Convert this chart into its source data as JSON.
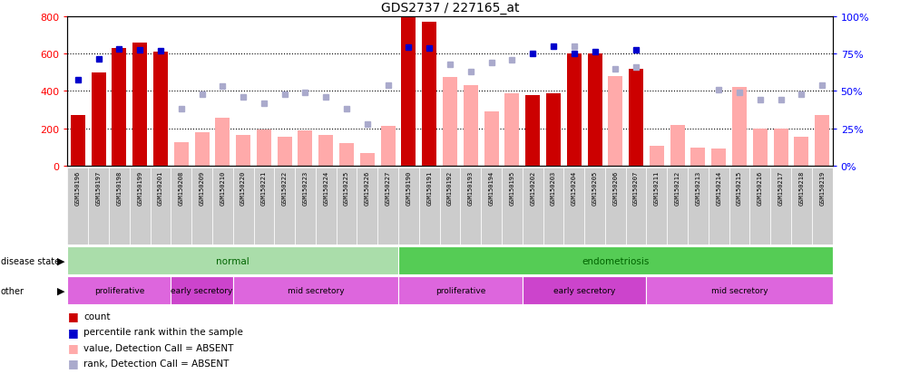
{
  "title": "GDS2737 / 227165_at",
  "samples": [
    "GSM150196",
    "GSM150197",
    "GSM150198",
    "GSM150199",
    "GSM150201",
    "GSM150208",
    "GSM150209",
    "GSM150210",
    "GSM150220",
    "GSM150221",
    "GSM150222",
    "GSM150223",
    "GSM150224",
    "GSM150225",
    "GSM150226",
    "GSM150227",
    "GSM150190",
    "GSM150191",
    "GSM150192",
    "GSM150193",
    "GSM150194",
    "GSM150195",
    "GSM150202",
    "GSM150203",
    "GSM150204",
    "GSM150205",
    "GSM150206",
    "GSM150207",
    "GSM150211",
    "GSM150212",
    "GSM150213",
    "GSM150214",
    "GSM150215",
    "GSM150216",
    "GSM150217",
    "GSM150218",
    "GSM150219"
  ],
  "count_values": [
    270,
    500,
    630,
    660,
    610,
    null,
    null,
    null,
    null,
    null,
    null,
    null,
    null,
    null,
    null,
    null,
    800,
    770,
    null,
    null,
    null,
    null,
    380,
    390,
    600,
    600,
    null,
    520,
    null,
    null,
    null,
    null,
    null,
    null,
    null,
    null,
    null
  ],
  "absent_values": [
    null,
    null,
    null,
    null,
    null,
    125,
    180,
    255,
    165,
    195,
    155,
    190,
    165,
    120,
    68,
    215,
    null,
    null,
    475,
    430,
    290,
    390,
    null,
    null,
    null,
    null,
    480,
    null,
    105,
    220,
    100,
    95,
    420,
    200,
    200,
    155,
    270
  ],
  "rank_present_pct": [
    57.5,
    71.5,
    78.0,
    77.5,
    77.0,
    null,
    null,
    null,
    null,
    null,
    null,
    null,
    null,
    null,
    null,
    null,
    79.0,
    78.5,
    null,
    null,
    null,
    null,
    75.0,
    80.0,
    75.0,
    76.0,
    null,
    77.5,
    null,
    null,
    null,
    null,
    null,
    null,
    null,
    null,
    null
  ],
  "rank_absent_pct": [
    null,
    null,
    null,
    null,
    null,
    38.0,
    48.0,
    53.0,
    46.0,
    42.0,
    48.0,
    49.0,
    46.0,
    38.0,
    28.0,
    54.0,
    null,
    null,
    67.5,
    63.0,
    69.0,
    71.0,
    null,
    null,
    80.0,
    null,
    65.0,
    66.0,
    null,
    null,
    null,
    51.0,
    49.0,
    44.0,
    44.0,
    48.0,
    54.0
  ],
  "present_bar_color": "#cc0000",
  "absent_bar_color": "#ffaaaa",
  "present_dot_color": "#0000cc",
  "absent_dot_color": "#aaaacc",
  "yticks_left": [
    0,
    200,
    400,
    600,
    800
  ],
  "yticks_right": [
    0,
    25,
    50,
    75,
    100
  ],
  "groups_disease": [
    {
      "label": "normal",
      "start": 0,
      "end": 16,
      "color": "#aaddaa"
    },
    {
      "label": "endometriosis",
      "start": 16,
      "end": 37,
      "color": "#55cc55"
    }
  ],
  "groups_other": [
    {
      "label": "proliferative",
      "start": 0,
      "end": 5,
      "color": "#dd66dd"
    },
    {
      "label": "early secretory",
      "start": 5,
      "end": 8,
      "color": "#cc44cc"
    },
    {
      "label": "mid secretory",
      "start": 8,
      "end": 16,
      "color": "#dd66dd"
    },
    {
      "label": "proliferative",
      "start": 16,
      "end": 22,
      "color": "#dd66dd"
    },
    {
      "label": "early secretory",
      "start": 22,
      "end": 28,
      "color": "#cc44cc"
    },
    {
      "label": "mid secretory",
      "start": 28,
      "end": 37,
      "color": "#dd66dd"
    }
  ],
  "xtick_bg": "#cccccc",
  "plot_bg": "#ffffff"
}
